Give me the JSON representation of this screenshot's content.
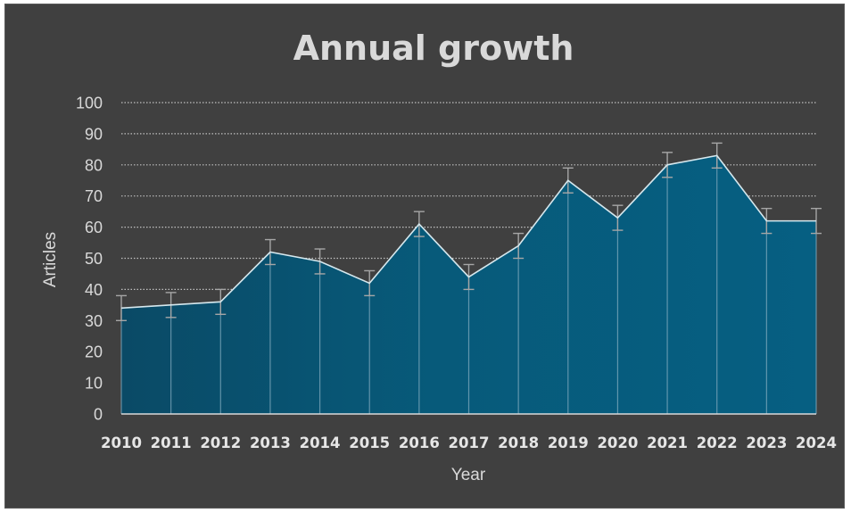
{
  "chart_data": {
    "type": "area",
    "title": "Annual growth",
    "xlabel": "Year",
    "ylabel": "Articles",
    "categories": [
      "2010",
      "2011",
      "2012",
      "2013",
      "2014",
      "2015",
      "2016",
      "2017",
      "2018",
      "2019",
      "2020",
      "2021",
      "2022",
      "2023",
      "2024"
    ],
    "series": [
      {
        "values": [
          34,
          35,
          36,
          52,
          49,
          42,
          61,
          44,
          54,
          75,
          63,
          80,
          83,
          62,
          62
        ],
        "error": 4
      }
    ],
    "ylim": [
      0,
      100
    ],
    "yticks": [
      0,
      10,
      20,
      30,
      40,
      50,
      60,
      70,
      80,
      90,
      100
    ],
    "grid": "horizontal dotted",
    "legend": "none",
    "colors": {
      "background": "#404040",
      "area_fill": "#075f80",
      "line": "#d6e8ee",
      "gridline": "#bfbfbf",
      "error_bar": "#a6a6a6",
      "text": "#d9d9d9"
    }
  }
}
